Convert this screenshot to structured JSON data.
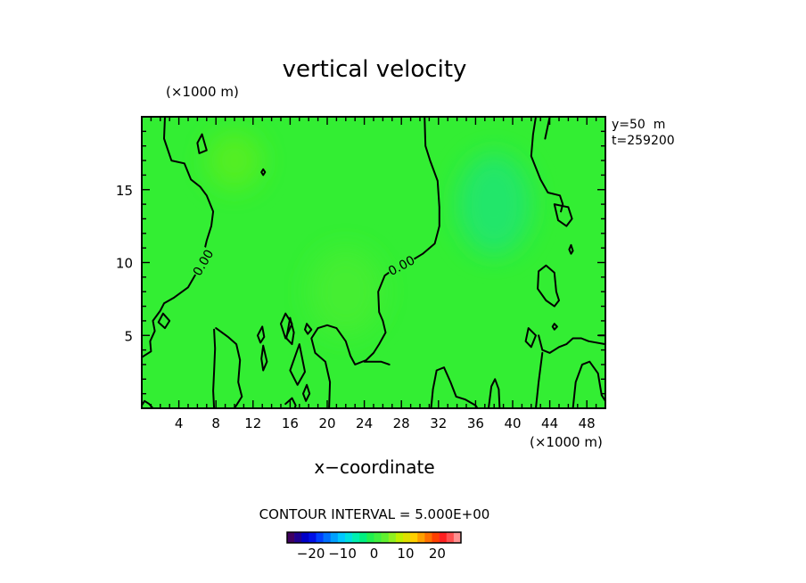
{
  "chart_data": {
    "type": "heatmap",
    "title": "vertical velocity",
    "xlabel": "x−coordinate",
    "x_unit": "(×1000 m)",
    "y_unit": "(×1000 m)",
    "info_lines": [
      "y=50  m",
      "t=259200"
    ],
    "xlim": [
      0,
      50
    ],
    "ylim": [
      0,
      20
    ],
    "x_ticks": [
      4,
      8,
      12,
      16,
      20,
      24,
      28,
      32,
      36,
      40,
      44,
      48
    ],
    "y_ticks": [
      5,
      10,
      15
    ],
    "x_minor_step": 1,
    "y_minor_step": 1,
    "field_color": "#33ee33",
    "field_patches": [
      {
        "x": 38,
        "y": 14,
        "rx": 4,
        "ry": 3.5,
        "color": "#22e66a"
      },
      {
        "x": 10,
        "y": 17,
        "rx": 3,
        "ry": 2,
        "color": "#55ee22"
      },
      {
        "x": 22,
        "y": 8,
        "rx": 4,
        "ry": 3,
        "color": "#44ee30"
      }
    ],
    "contour_interval_text": "CONTOUR INTERVAL = 5.000E+00",
    "contour_labels": [
      {
        "text": "0.00",
        "x": 6.6,
        "y": 10.0,
        "rotate": -60
      },
      {
        "text": "0.00",
        "x": 28.0,
        "y": 9.8,
        "rotate": -28
      }
    ],
    "contours": [
      [
        [
          2.5,
          20
        ],
        [
          2.4,
          18.5
        ],
        [
          3.2,
          17.0
        ],
        [
          4.6,
          16.8
        ],
        [
          5.3,
          15.7
        ],
        [
          6.3,
          15.2
        ],
        [
          7.0,
          14.6
        ],
        [
          7.7,
          13.5
        ],
        [
          7.5,
          12.5
        ],
        [
          7.0,
          11.5
        ],
        [
          6.6,
          10.4
        ],
        [
          6.0,
          9.4
        ],
        [
          5.0,
          8.3
        ],
        [
          3.5,
          7.6
        ],
        [
          2.4,
          7.2
        ],
        [
          2.0,
          6.7
        ],
        [
          1.2,
          6.0
        ],
        [
          1.4,
          5.3
        ],
        [
          0.9,
          4.6
        ],
        [
          1.0,
          3.9
        ],
        [
          0,
          3.5
        ]
      ],
      [
        [
          30.5,
          20
        ],
        [
          30.6,
          18.0
        ],
        [
          31.1,
          17.0
        ],
        [
          31.9,
          15.6
        ],
        [
          32.1,
          13.8
        ],
        [
          32.1,
          12.5
        ],
        [
          31.6,
          11.3
        ],
        [
          30.3,
          10.6
        ],
        [
          29.0,
          10.1
        ],
        [
          27.5,
          9.7
        ],
        [
          26.2,
          9.1
        ],
        [
          25.5,
          8.0
        ],
        [
          25.6,
          6.6
        ],
        [
          26.0,
          6.0
        ],
        [
          26.3,
          5.2
        ],
        [
          25.6,
          4.4
        ],
        [
          25.0,
          3.8
        ],
        [
          24.2,
          3.3
        ],
        [
          23.0,
          3.0
        ],
        [
          22.5,
          3.6
        ],
        [
          22.0,
          4.6
        ],
        [
          21.0,
          5.5
        ],
        [
          20.0,
          5.7
        ],
        [
          19.0,
          5.5
        ],
        [
          18.3,
          4.8
        ],
        [
          18.7,
          3.8
        ],
        [
          19.8,
          3.2
        ],
        [
          20.3,
          1.8
        ],
        [
          20.2,
          0
        ]
      ],
      [
        [
          6.5,
          18.8
        ],
        [
          7.0,
          17.7
        ],
        [
          6.2,
          17.5
        ],
        [
          6.0,
          18.2
        ],
        [
          6.5,
          18.8
        ]
      ],
      [
        [
          13.1,
          16.4
        ],
        [
          13.3,
          16.2
        ],
        [
          13.1,
          16.0
        ],
        [
          12.9,
          16.2
        ],
        [
          13.1,
          16.4
        ]
      ],
      [
        [
          2.3,
          6.5
        ],
        [
          3.0,
          6.0
        ],
        [
          2.5,
          5.5
        ],
        [
          1.8,
          5.9
        ],
        [
          2.3,
          6.5
        ]
      ],
      [
        [
          8.0,
          5.5
        ],
        [
          9.3,
          4.9
        ],
        [
          10.2,
          4.4
        ],
        [
          10.6,
          3.3
        ],
        [
          10.4,
          1.8
        ],
        [
          10.8,
          0.8
        ],
        [
          10.2,
          0.2
        ],
        [
          10.0,
          0
        ]
      ],
      [
        [
          7.8,
          5.4
        ],
        [
          7.9,
          4.1
        ],
        [
          7.8,
          2.5
        ],
        [
          7.7,
          1.2
        ],
        [
          7.8,
          0
        ]
      ],
      [
        [
          15.5,
          6.5
        ],
        [
          16.2,
          5.8
        ],
        [
          15.5,
          4.8
        ],
        [
          15.0,
          5.8
        ],
        [
          15.5,
          6.5
        ]
      ],
      [
        [
          16.0,
          6.2
        ],
        [
          16.4,
          5.2
        ],
        [
          16.2,
          4.4
        ],
        [
          15.6,
          4.8
        ],
        [
          16.0,
          6.2
        ]
      ],
      [
        [
          17.0,
          4.4
        ],
        [
          17.6,
          2.5
        ],
        [
          16.8,
          1.6
        ],
        [
          16.0,
          2.6
        ],
        [
          17.0,
          4.4
        ]
      ],
      [
        [
          17.8,
          1.6
        ],
        [
          18.1,
          1.0
        ],
        [
          17.7,
          0.5
        ],
        [
          17.4,
          1.0
        ],
        [
          17.8,
          1.6
        ]
      ],
      [
        [
          17.8,
          5.8
        ],
        [
          18.3,
          5.4
        ],
        [
          17.9,
          5.1
        ],
        [
          17.6,
          5.4
        ],
        [
          17.8,
          5.8
        ]
      ],
      [
        [
          13.1,
          4.3
        ],
        [
          13.5,
          3.2
        ],
        [
          13.1,
          2.6
        ],
        [
          12.9,
          3.4
        ],
        [
          13.1,
          4.3
        ]
      ],
      [
        [
          13.0,
          5.6
        ],
        [
          13.2,
          4.9
        ],
        [
          12.8,
          4.5
        ],
        [
          12.5,
          5.0
        ],
        [
          13.0,
          5.6
        ]
      ],
      [
        [
          15.5,
          0.3
        ],
        [
          16.2,
          0.7
        ],
        [
          16.6,
          0.2
        ],
        [
          16.5,
          0
        ]
      ],
      [
        [
          24.0,
          3.2
        ],
        [
          25.8,
          3.2
        ],
        [
          26.7,
          3.0
        ]
      ],
      [
        [
          31.2,
          0
        ],
        [
          31.4,
          1.3
        ],
        [
          31.8,
          2.6
        ],
        [
          32.6,
          2.8
        ],
        [
          33.3,
          1.8
        ],
        [
          33.9,
          0.8
        ],
        [
          34.9,
          0.6
        ],
        [
          36.0,
          0.2
        ],
        [
          36.2,
          0
        ]
      ],
      [
        [
          37.4,
          0
        ],
        [
          37.7,
          1.5
        ],
        [
          38.1,
          2.0
        ],
        [
          38.5,
          1.3
        ],
        [
          38.6,
          0
        ]
      ],
      [
        [
          42.5,
          20
        ],
        [
          42.2,
          18.8
        ],
        [
          42.0,
          17.3
        ],
        [
          43.0,
          15.7
        ],
        [
          43.8,
          14.8
        ],
        [
          45.1,
          14.6
        ],
        [
          45.4,
          14.0
        ],
        [
          45.2,
          13.5
        ]
      ],
      [
        [
          44.5,
          14.0
        ],
        [
          46.0,
          13.8
        ],
        [
          46.4,
          13.0
        ],
        [
          45.8,
          12.5
        ],
        [
          44.9,
          12.9
        ],
        [
          44.5,
          14.0
        ]
      ],
      [
        [
          46.3,
          11.2
        ],
        [
          46.5,
          10.8
        ],
        [
          46.3,
          10.6
        ],
        [
          46.1,
          10.9
        ],
        [
          46.3,
          11.2
        ]
      ],
      [
        [
          42.8,
          9.4
        ],
        [
          43.6,
          9.8
        ],
        [
          44.5,
          9.3
        ],
        [
          44.7,
          8.0
        ],
        [
          45.0,
          7.4
        ],
        [
          44.5,
          7.0
        ],
        [
          43.6,
          7.4
        ],
        [
          42.7,
          8.2
        ],
        [
          42.8,
          9.4
        ]
      ],
      [
        [
          44.0,
          20
        ],
        [
          43.5,
          18.5
        ]
      ],
      [
        [
          41.7,
          5.5
        ],
        [
          42.5,
          5.0
        ],
        [
          42.0,
          4.2
        ],
        [
          41.4,
          4.6
        ],
        [
          41.7,
          5.5
        ]
      ],
      [
        [
          44.5,
          5.8
        ],
        [
          44.8,
          5.6
        ],
        [
          44.5,
          5.4
        ],
        [
          44.3,
          5.6
        ],
        [
          44.5,
          5.8
        ]
      ],
      [
        [
          42.8,
          5.0
        ],
        [
          43.2,
          4.0
        ],
        [
          44.0,
          3.8
        ],
        [
          45.0,
          4.2
        ],
        [
          45.8,
          4.4
        ],
        [
          46.5,
          4.8
        ],
        [
          47.4,
          4.8
        ],
        [
          48.2,
          4.6
        ],
        [
          50,
          4.4
        ]
      ],
      [
        [
          42.5,
          0
        ],
        [
          42.8,
          1.8
        ],
        [
          43.2,
          3.8
        ]
      ],
      [
        [
          46.5,
          0
        ],
        [
          46.8,
          1.8
        ],
        [
          47.5,
          3.0
        ],
        [
          48.3,
          3.2
        ],
        [
          49.2,
          2.4
        ],
        [
          49.6,
          0.9
        ],
        [
          50,
          0.5
        ]
      ],
      [
        [
          49.3,
          5.0
        ],
        [
          50,
          5.0
        ]
      ],
      [
        [
          0,
          0.2
        ],
        [
          0.3,
          0.5
        ],
        [
          0.8,
          0.3
        ],
        [
          1.2,
          0
        ]
      ]
    ]
  },
  "colorbar": {
    "ticks": [
      "−20",
      "−10",
      "0",
      "10",
      "20"
    ],
    "tick_values": [
      -20,
      -10,
      0,
      10,
      20
    ],
    "min": -27.5,
    "max": 27.5,
    "colors": [
      "#400060",
      "#200090",
      "#0000c8",
      "#0010e8",
      "#0040ff",
      "#0070ff",
      "#00a0ff",
      "#00c8ff",
      "#00e0e0",
      "#00f0b0",
      "#00f080",
      "#20f050",
      "#40f040",
      "#60f030",
      "#90f020",
      "#c0f000",
      "#e0e000",
      "#ffd000",
      "#ffa000",
      "#ff7000",
      "#ff4000",
      "#ff2020",
      "#ff5050",
      "#ff9090"
    ]
  }
}
